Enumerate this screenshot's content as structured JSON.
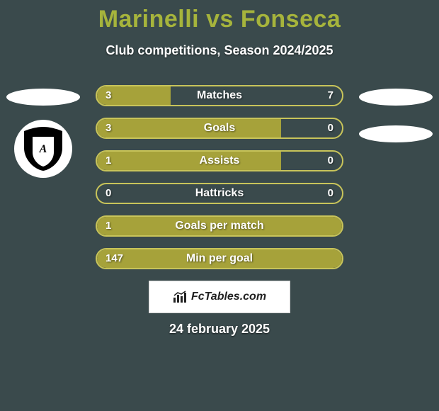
{
  "background_color": "#3a4a4c",
  "title": {
    "player_a": "Marinelli",
    "vs": "vs",
    "player_b": "Fonseca",
    "color": "#a6b43c",
    "fontsize": 34
  },
  "subtitle": {
    "text": "Club competitions, Season 2024/2025",
    "color": "#ffffff",
    "fontsize": 18
  },
  "bar_style": {
    "fill_color": "#a6a23a",
    "border_color": "#c8c45a",
    "track_color_alpha": "rgba(0,0,0,0)",
    "label_color": "#ffffff",
    "value_color": "#ffffff",
    "height": 30,
    "radius": 15,
    "fontsize": 16
  },
  "stats": [
    {
      "label": "Matches",
      "a": "3",
      "b": "7",
      "fill_pct": 30
    },
    {
      "label": "Goals",
      "a": "3",
      "b": "0",
      "fill_pct": 75
    },
    {
      "label": "Assists",
      "a": "1",
      "b": "0",
      "fill_pct": 75
    },
    {
      "label": "Hattricks",
      "a": "0",
      "b": "0",
      "fill_pct": 0
    },
    {
      "label": "Goals per match",
      "a": "1",
      "b": "",
      "fill_pct": 100
    },
    {
      "label": "Min per goal",
      "a": "147",
      "b": "",
      "fill_pct": 100
    }
  ],
  "left_side": {
    "ellipse_color": "#ffffff",
    "club_logo": {
      "bg": "#ffffff",
      "shield": "#000000",
      "letters": "AFC"
    }
  },
  "right_side": {
    "ellipse_color": "#ffffff"
  },
  "attribution": {
    "icon_name": "chart-icon",
    "text": "FcTables.com",
    "bg": "#ffffff",
    "text_color": "#222222"
  },
  "date": {
    "text": "24 february 2025",
    "color": "#ffffff",
    "fontsize": 18
  }
}
